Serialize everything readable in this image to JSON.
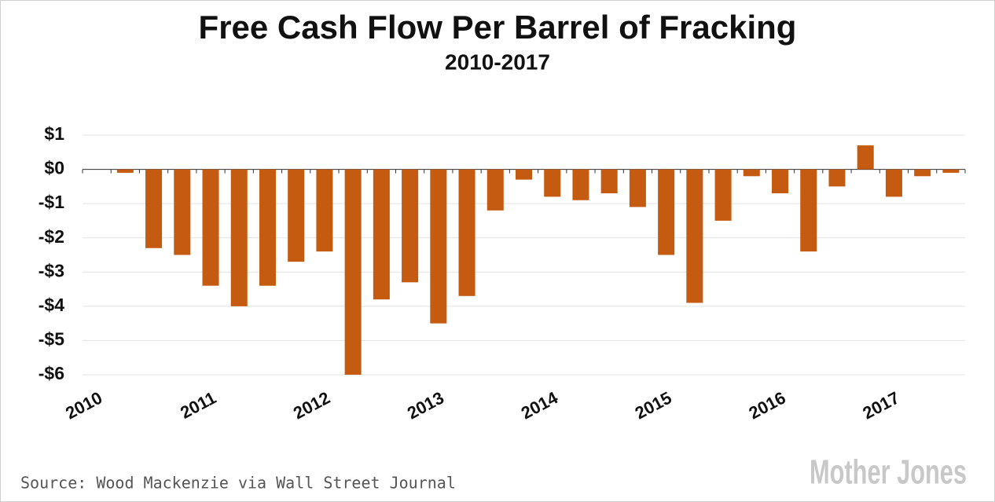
{
  "chart_data": {
    "type": "bar",
    "title": "Free Cash Flow Per Barrel of Fracking",
    "subtitle": "2010-2017",
    "source": "Source: Wood Mackenzie via Wall Street Journal",
    "logo": "Mother Jones",
    "categories": [
      "2010",
      null,
      null,
      null,
      "2011",
      null,
      null,
      null,
      "2012",
      null,
      null,
      null,
      "2013",
      null,
      null,
      null,
      "2014",
      null,
      null,
      null,
      "2015",
      null,
      null,
      null,
      "2016",
      null,
      null,
      null,
      "2017",
      null,
      null
    ],
    "values": [
      null,
      -0.1,
      -2.3,
      -2.5,
      -3.4,
      -4.0,
      -3.4,
      -2.7,
      -2.4,
      -6.0,
      -3.8,
      -3.3,
      -4.5,
      -3.7,
      -1.2,
      -0.3,
      -0.8,
      -0.9,
      -0.7,
      -1.1,
      -2.5,
      -3.9,
      -1.5,
      -0.2,
      -0.7,
      -2.4,
      -0.5,
      0.7,
      -0.8,
      -0.2,
      -0.1
    ],
    "color": "#c55a11",
    "ylim": [
      -6,
      1
    ],
    "yticks": [
      {
        "value": 1,
        "label": "$1"
      },
      {
        "value": 0,
        "label": "$0"
      },
      {
        "value": -1,
        "label": "-$1"
      },
      {
        "value": -2,
        "label": "-$2"
      },
      {
        "value": -3,
        "label": "-$3"
      },
      {
        "value": -4,
        "label": "-$4"
      },
      {
        "value": -5,
        "label": "-$5"
      },
      {
        "value": -6,
        "label": "-$6"
      }
    ],
    "grid": true
  }
}
